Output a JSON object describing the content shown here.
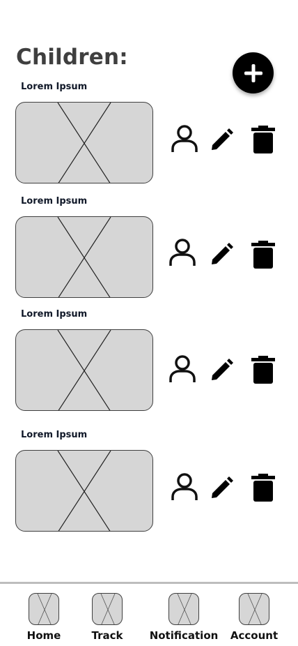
{
  "page": {
    "title": "Children:"
  },
  "children": [
    {
      "label": "Lorem Ipsum"
    },
    {
      "label": "Lorem Ipsum"
    },
    {
      "label": "Lorem Ipsum"
    },
    {
      "label": "Lorem Ipsum"
    }
  ],
  "icons": {
    "add": "plus-icon",
    "profile": "person-icon",
    "edit": "pencil-icon",
    "delete": "trash-icon",
    "placeholder": "image-placeholder-icon"
  },
  "bottom_nav": [
    {
      "label": "Home"
    },
    {
      "label": "Track"
    },
    {
      "label": "Notification"
    },
    {
      "label": "Account"
    }
  ],
  "colors": {
    "placeholder_fill": "#d6d6d6",
    "outline": "#3f3f3f",
    "title": "#3f3f3f",
    "icon": "#000000",
    "divider": "#bdbdbd"
  }
}
